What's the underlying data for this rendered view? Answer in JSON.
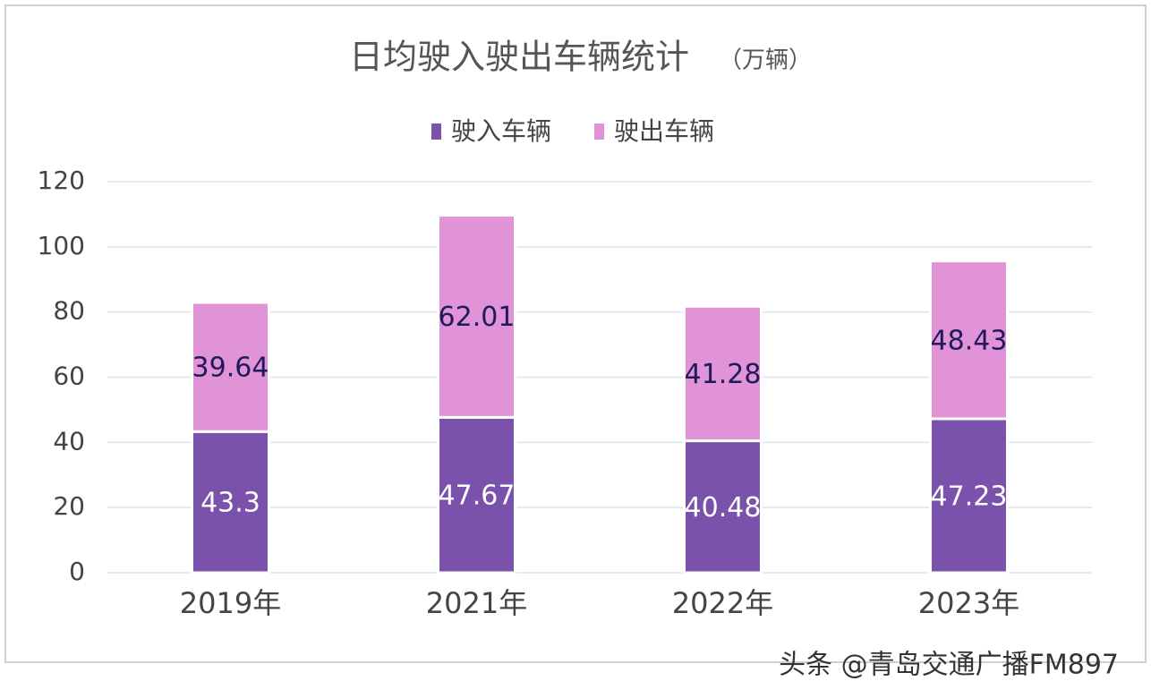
{
  "chart_data": {
    "type": "stacked_bar",
    "title": "日均驶入驶出车辆统计",
    "unit": "（万辆）",
    "categories": [
      "2019年",
      "2021年",
      "2022年",
      "2023年"
    ],
    "series": [
      {
        "name": "驶入车辆",
        "color": "#7b52ab",
        "label_color": "#ffffff",
        "values": [
          43.3,
          47.67,
          40.48,
          47.23
        ]
      },
      {
        "name": "驶出车辆",
        "color": "#e193d8",
        "label_color": "#1f1a5c",
        "values": [
          39.64,
          62.01,
          41.28,
          48.43
        ]
      }
    ],
    "ylim": [
      0,
      120
    ],
    "yticks": [
      0,
      20,
      40,
      60,
      80,
      100,
      120
    ],
    "grid": true,
    "legend": "top",
    "watermark": "头条 @青岛交通广播FM897"
  }
}
